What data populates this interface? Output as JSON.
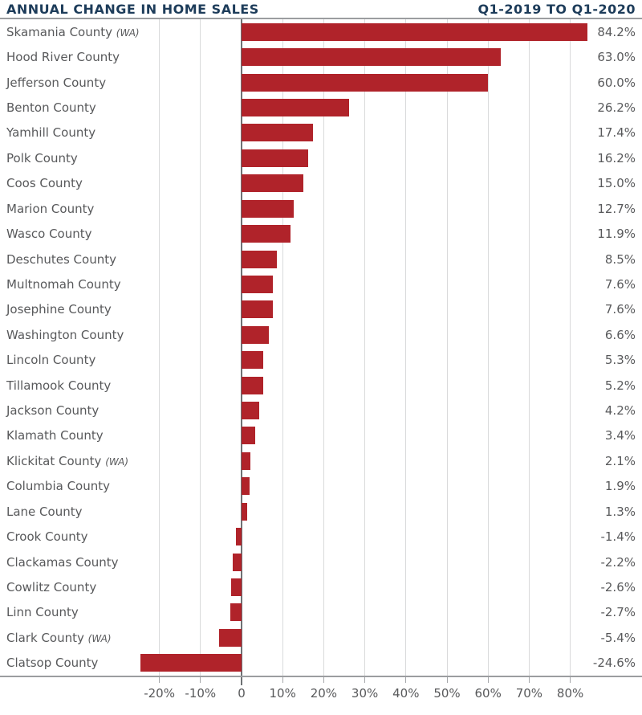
{
  "header": {
    "title": "ANNUAL CHANGE IN HOME SALES",
    "period": "Q1-2019 TO Q1-2020"
  },
  "colors": {
    "bar": "#b0232a",
    "navy": "#1d3c5a",
    "text_gray": "#58595b",
    "grid": "#d9dadb",
    "zero_line": "#6e7174",
    "axis_line": "#9b9da0"
  },
  "chart_data": {
    "type": "bar",
    "orientation": "horizontal",
    "title": "ANNUAL CHANGE IN HOME SALES",
    "subtitle": "Q1-2019 TO Q1-2020",
    "unit": "percent",
    "grid": true,
    "axis_range": [
      -20,
      80
    ],
    "x_ticks": [
      {
        "value": -20,
        "label": "-20%"
      },
      {
        "value": -10,
        "label": "-10%"
      },
      {
        "value": 0,
        "label": "0"
      },
      {
        "value": 10,
        "label": "10%"
      },
      {
        "value": 20,
        "label": "20%"
      },
      {
        "value": 30,
        "label": "30%"
      },
      {
        "value": 40,
        "label": "40%"
      },
      {
        "value": 50,
        "label": "50%"
      },
      {
        "value": 60,
        "label": "60%"
      },
      {
        "value": 70,
        "label": "70%"
      },
      {
        "value": 80,
        "label": "80%"
      }
    ],
    "rows": [
      {
        "county": "Skamania County",
        "state_suffix": "(WA)",
        "value": 84.2,
        "value_label": "84.2%"
      },
      {
        "county": "Hood River County",
        "state_suffix": "",
        "value": 63.0,
        "value_label": "63.0%"
      },
      {
        "county": "Jefferson County",
        "state_suffix": "",
        "value": 60.0,
        "value_label": "60.0%"
      },
      {
        "county": "Benton County",
        "state_suffix": "",
        "value": 26.2,
        "value_label": "26.2%"
      },
      {
        "county": "Yamhill County",
        "state_suffix": "",
        "value": 17.4,
        "value_label": "17.4%"
      },
      {
        "county": "Polk County",
        "state_suffix": "",
        "value": 16.2,
        "value_label": "16.2%"
      },
      {
        "county": "Coos County",
        "state_suffix": "",
        "value": 15.0,
        "value_label": "15.0%"
      },
      {
        "county": "Marion County",
        "state_suffix": "",
        "value": 12.7,
        "value_label": "12.7%"
      },
      {
        "county": "Wasco County",
        "state_suffix": "",
        "value": 11.9,
        "value_label": "11.9%"
      },
      {
        "county": "Deschutes County",
        "state_suffix": "",
        "value": 8.5,
        "value_label": "8.5%"
      },
      {
        "county": "Multnomah County",
        "state_suffix": "",
        "value": 7.6,
        "value_label": "7.6%"
      },
      {
        "county": "Josephine County",
        "state_suffix": "",
        "value": 7.6,
        "value_label": "7.6%"
      },
      {
        "county": "Washington County",
        "state_suffix": "",
        "value": 6.6,
        "value_label": "6.6%"
      },
      {
        "county": "Lincoln County",
        "state_suffix": "",
        "value": 5.3,
        "value_label": "5.3%"
      },
      {
        "county": "Tillamook County",
        "state_suffix": "",
        "value": 5.2,
        "value_label": "5.2%"
      },
      {
        "county": "Jackson County",
        "state_suffix": "",
        "value": 4.2,
        "value_label": "4.2%"
      },
      {
        "county": "Klamath County",
        "state_suffix": "",
        "value": 3.4,
        "value_label": "3.4%"
      },
      {
        "county": "Klickitat County",
        "state_suffix": "(WA)",
        "value": 2.1,
        "value_label": "2.1%"
      },
      {
        "county": "Columbia County",
        "state_suffix": "",
        "value": 1.9,
        "value_label": "1.9%"
      },
      {
        "county": "Lane County",
        "state_suffix": "",
        "value": 1.3,
        "value_label": "1.3%"
      },
      {
        "county": "Crook County",
        "state_suffix": "",
        "value": -1.4,
        "value_label": "-1.4%"
      },
      {
        "county": "Clackamas County",
        "state_suffix": "",
        "value": -2.2,
        "value_label": "-2.2%"
      },
      {
        "county": "Cowlitz County",
        "state_suffix": "",
        "value": -2.6,
        "value_label": "-2.6%"
      },
      {
        "county": "Linn County",
        "state_suffix": "",
        "value": -2.7,
        "value_label": "-2.7%"
      },
      {
        "county": "Clark County",
        "state_suffix": "(WA)",
        "value": -5.4,
        "value_label": "-5.4%"
      },
      {
        "county": "Clatsop County",
        "state_suffix": "",
        "value": -24.6,
        "value_label": "-24.6%"
      }
    ]
  }
}
